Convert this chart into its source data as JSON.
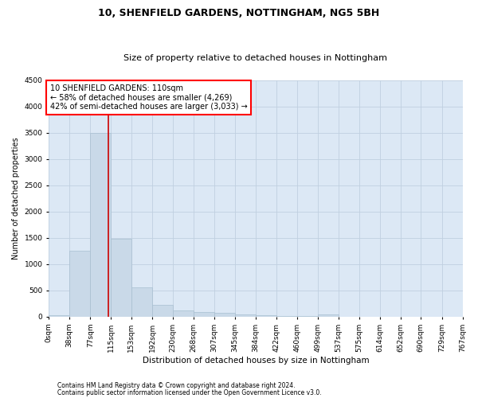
{
  "title": "10, SHENFIELD GARDENS, NOTTINGHAM, NG5 5BH",
  "subtitle": "Size of property relative to detached houses in Nottingham",
  "xlabel": "Distribution of detached houses by size in Nottingham",
  "ylabel": "Number of detached properties",
  "footnote1": "Contains HM Land Registry data © Crown copyright and database right 2024.",
  "footnote2": "Contains public sector information licensed under the Open Government Licence v3.0.",
  "annotation_line1": "10 SHENFIELD GARDENS: 110sqm",
  "annotation_line2": "← 58% of detached houses are smaller (4,269)",
  "annotation_line3": "42% of semi-detached houses are larger (3,033) →",
  "property_size": 110,
  "bin_edges": [
    0,
    38,
    77,
    115,
    153,
    192,
    230,
    268,
    307,
    345,
    384,
    422,
    460,
    499,
    537,
    575,
    614,
    652,
    690,
    729,
    767
  ],
  "bar_values": [
    30,
    1250,
    3500,
    1480,
    560,
    230,
    120,
    90,
    70,
    50,
    30,
    20,
    10,
    50,
    0,
    0,
    0,
    0,
    0,
    0
  ],
  "bar_color": "#c9d9e8",
  "bar_edgecolor": "#a8bfd0",
  "redline_color": "#cc0000",
  "grid_color": "#c0d0e0",
  "background_color": "#dce8f5",
  "ylim": [
    0,
    4500
  ],
  "yticks": [
    0,
    500,
    1000,
    1500,
    2000,
    2500,
    3000,
    3500,
    4000,
    4500
  ],
  "title_fontsize": 9,
  "subtitle_fontsize": 8,
  "xlabel_fontsize": 7.5,
  "ylabel_fontsize": 7,
  "tick_fontsize": 6.5,
  "annotation_fontsize": 7,
  "footnote_fontsize": 5.5
}
